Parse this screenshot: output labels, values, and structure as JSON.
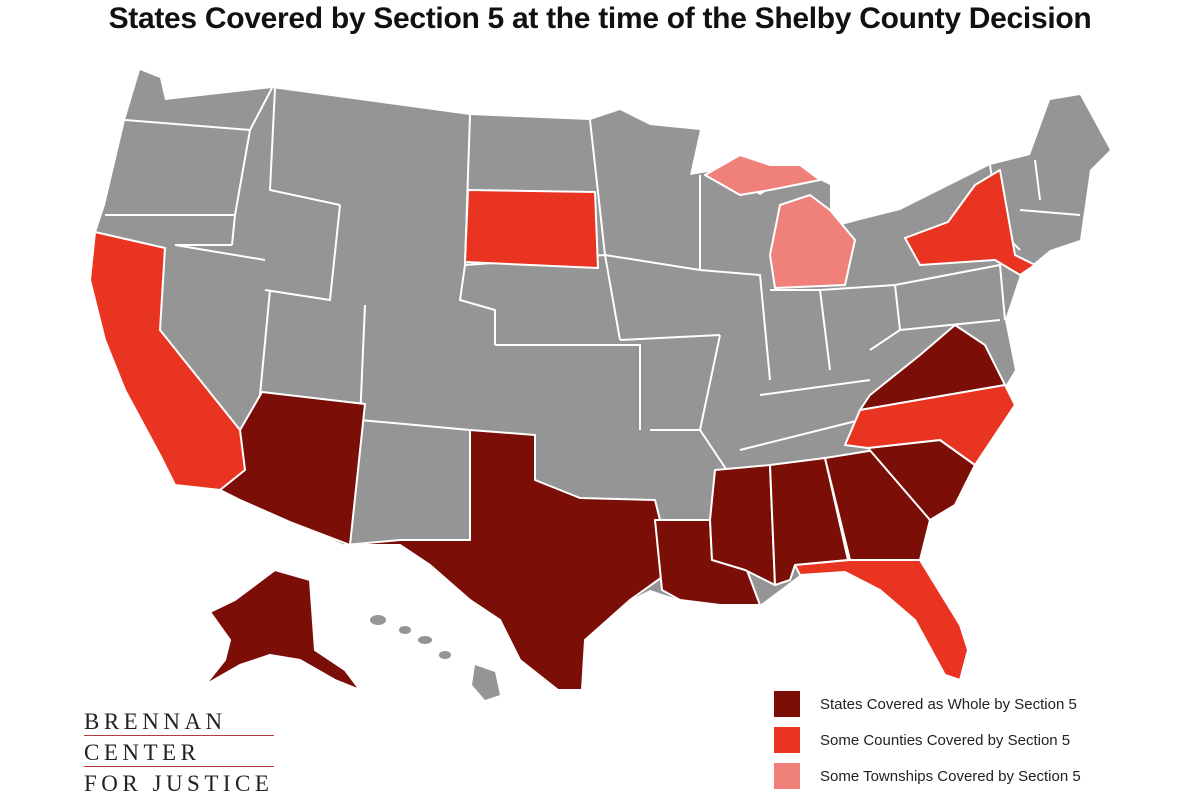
{
  "title": "States Covered by Section 5 at the time of the Shelby County Decision",
  "colors": {
    "not_covered": "#959595",
    "whole": "#7b0f08",
    "counties": "#ea3422",
    "townships": "#f0817a"
  },
  "states": {
    "whole": [
      "Alaska",
      "Arizona",
      "Texas",
      "Louisiana",
      "Mississippi",
      "Alabama",
      "Georgia",
      "South Carolina",
      "Virginia"
    ],
    "counties": [
      "California",
      "South Dakota",
      "New York",
      "North Carolina",
      "Florida"
    ],
    "townships": [
      "Michigan"
    ]
  },
  "legend": {
    "whole": "States Covered as Whole by Section 5",
    "counties": "Some Counties Covered by Section 5",
    "townships": "Some Townships Covered by Section 5"
  },
  "logo": {
    "line1": "BRENNAN",
    "line2": "CENTER",
    "line3": "FOR JUSTICE"
  }
}
